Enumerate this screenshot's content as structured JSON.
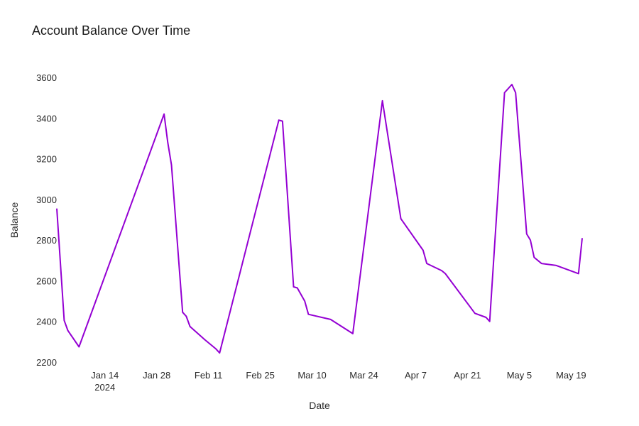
{
  "chart_data": {
    "type": "line",
    "title": "Account Balance Over Time",
    "xlabel": "Date",
    "ylabel": "Balance",
    "line_color": "#9400D3",
    "grid": false,
    "ylim": [
      2200,
      3600
    ],
    "yticks": [
      2200,
      2400,
      2600,
      2800,
      3000,
      3200,
      3400,
      3600
    ],
    "xticks": [
      {
        "date": "2024-01-14",
        "label": "Jan 14",
        "sublabel": "2024"
      },
      {
        "date": "2024-01-28",
        "label": "Jan 28"
      },
      {
        "date": "2024-02-11",
        "label": "Feb 11"
      },
      {
        "date": "2024-02-25",
        "label": "Feb 25"
      },
      {
        "date": "2024-03-10",
        "label": "Mar 10"
      },
      {
        "date": "2024-03-24",
        "label": "Mar 24"
      },
      {
        "date": "2024-04-07",
        "label": "Apr 7"
      },
      {
        "date": "2024-04-21",
        "label": "Apr 21"
      },
      {
        "date": "2024-05-05",
        "label": "May 5"
      },
      {
        "date": "2024-05-19",
        "label": "May 19"
      }
    ],
    "series": [
      {
        "x": [
          "2024-01-01",
          "2024-01-03",
          "2024-01-04",
          "2024-01-07",
          "2024-01-30",
          "2024-01-31",
          "2024-02-01",
          "2024-02-04",
          "2024-02-05",
          "2024-02-06",
          "2024-02-10",
          "2024-02-13",
          "2024-02-14",
          "2024-03-01",
          "2024-03-02",
          "2024-03-05",
          "2024-03-06",
          "2024-03-08",
          "2024-03-09",
          "2024-03-15",
          "2024-03-21",
          "2024-03-29",
          "2024-04-03",
          "2024-04-09",
          "2024-04-10",
          "2024-04-14",
          "2024-04-15",
          "2024-04-23",
          "2024-04-26",
          "2024-04-27",
          "2024-05-01",
          "2024-05-03",
          "2024-05-04",
          "2024-05-07",
          "2024-05-08",
          "2024-05-09",
          "2024-05-11",
          "2024-05-15",
          "2024-05-21",
          "2024-05-22"
        ],
        "values": [
          2955,
          2405,
          2355,
          2275,
          3420,
          3280,
          3170,
          2445,
          2425,
          2375,
          2310,
          2265,
          2245,
          3390,
          3385,
          2570,
          2565,
          2500,
          2435,
          2410,
          2340,
          3485,
          2905,
          2750,
          2685,
          2650,
          2635,
          2440,
          2420,
          2400,
          3525,
          3565,
          3525,
          2830,
          2800,
          2715,
          2685,
          2675,
          2635,
          2810
        ]
      }
    ]
  }
}
